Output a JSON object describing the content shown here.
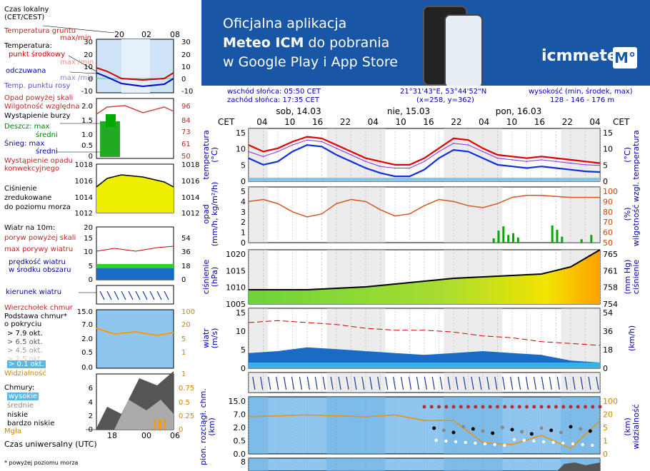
{
  "legend": {
    "time_local": "Czas lokalny\n(CET/CEST)",
    "soil_temp": "Temperatura gruntu",
    "soil_maxmin": "max/min",
    "temperature": "Temperatura:",
    "mid_point": "punkt środkowy",
    "max_min": "max /min",
    "feels_like": "odczuwana",
    "feels_maxmin": "max /min",
    "dew_point": "Temp. punktu rosy",
    "precip_above": "Opad powyżej skali",
    "humidity": "Wilgotność względna",
    "storm": "Wystąpienie burzy",
    "rain_max": "Deszcz: max",
    "rain_avg": "średni",
    "snow_max": "Śnieg:  max",
    "snow_avg": "średni",
    "conv_precip": "Wystąpienie opadu\nkonwekcyjnego",
    "pressure": "Ciśnienie\nzredukowane\ndo poziomu morza",
    "wind10": "Wiatr na 10m:",
    "gust_above": "poryw powyżej skali",
    "max_gust": "max porywy wiatru",
    "wind_speed": "prędkość wiatru\nw środku obszaru",
    "wind_dir": "kierunek wiatru",
    "cloud_top": "Wierzchołek chmur",
    "cloud_base": "Podstawa chmur*\no pokryciu",
    "cov1": "> 7.9 okt.",
    "cov2": "> 6.5 okt.",
    "cov3": "> 4.5 okt.",
    "cov4": "> 2.5 okt.",
    "cov5": "> 0.1 okt.",
    "visibility": "Widzialność",
    "clouds": "Chmury:",
    "high": "wysokie",
    "mid": "średnie",
    "low": "niskie",
    "very_low": "bardzo niskie",
    "fog": "Mgła",
    "utc": "Czas uniwersalny (UTC)",
    "footnote": "* powyżej poziomu morza",
    "hours_top": [
      "20",
      "02",
      "08"
    ],
    "hours_bottom": [
      "18",
      "00",
      "06"
    ]
  },
  "banner": {
    "line1": "Oficjalna aplikacja",
    "line2_pre": "Meteo ICM",
    "line2_post": " do pobrania",
    "line3": "w Google Play i App Store",
    "logo": "icmmeteo",
    "logo_box": "M°"
  },
  "info": {
    "sunrise": "wschód słońca: 05:50 CET",
    "sunset": "zachód słońca: 17:35 CET",
    "coords": "21°31'43\"E, 53°44'52\"N",
    "grid": "(x=258,  y=362)",
    "height_label": "wysokość (min, środek, max)",
    "height_values": "128 - 146 - 176 m"
  },
  "timeline": {
    "tz": "CET",
    "days": [
      "sob, 14.03",
      "nie, 15.03",
      "pon, 16.03"
    ],
    "hours": [
      "04",
      "10",
      "16",
      "22",
      "04",
      "10",
      "16",
      "22",
      "04",
      "10",
      "16",
      "22",
      "04"
    ]
  },
  "panels": {
    "temp": {
      "left": "temperatura\n(°C)",
      "ticks": [
        "15",
        "10",
        "5",
        "0"
      ]
    },
    "precip": {
      "left": "opad\n(mm/h, kg/m²/h)",
      "right": "(%)\nwilgotność wzgl.",
      "ticks": [
        "5",
        "4",
        "3",
        "2",
        "1",
        "0"
      ],
      "rticks": [
        "100",
        "90",
        "80",
        "70",
        "60",
        "50"
      ]
    },
    "pressure": {
      "left": "ciśnienie\n(hPa)",
      "right": "(mm Hg)\nciśnienie",
      "ticks": [
        "1020",
        "1015",
        "1010",
        "1005"
      ],
      "rticks": [
        "765",
        "761",
        "758",
        "754"
      ]
    },
    "wind": {
      "left": "wiatr\n(m/s)",
      "right": "(km/h)",
      "ticks": [
        "15",
        "10",
        "5",
        "0"
      ],
      "rticks": [
        "54",
        "36",
        "18",
        "0"
      ]
    },
    "clouds": {
      "left": "pion. rozciągł. chm.\n(km)",
      "right": "(km)\nwidzialność",
      "ticks": [
        "15.0",
        "7.0",
        "2.0",
        "0.5",
        "0.0"
      ],
      "rticks": [
        "100",
        "20",
        "5",
        "1",
        "0"
      ]
    },
    "bottom_tick": "8"
  },
  "chart_data": [
    {
      "type": "line",
      "title": "temperatura",
      "ylabel": "(°C)",
      "ylim": [
        -1,
        15
      ],
      "x": [
        0,
        3,
        6,
        9,
        12,
        15,
        18,
        21,
        24,
        27,
        30,
        33,
        36,
        39,
        42,
        45,
        48,
        51,
        54,
        57,
        60,
        63,
        66,
        69,
        72
      ],
      "series": [
        {
          "name": "max",
          "values": [
            10,
            8,
            9,
            11,
            12.5,
            12,
            10,
            8,
            6,
            5,
            4,
            4,
            6,
            9,
            12,
            11.5,
            9,
            7,
            6.5,
            6,
            6.5,
            6,
            5.5,
            5,
            4.5
          ]
        },
        {
          "name": "punkt środkowy",
          "values": [
            8,
            6.5,
            8,
            10,
            11.5,
            11,
            9,
            7,
            5,
            3.5,
            3,
            3,
            5,
            8,
            10.5,
            10,
            8,
            6,
            5.5,
            5,
            5.5,
            5,
            4.5,
            4,
            3.8
          ]
        },
        {
          "name": "odczuwana",
          "values": [
            6,
            4,
            5,
            8,
            10,
            9.5,
            7,
            5,
            3,
            1.5,
            0.5,
            0.5,
            2.5,
            6,
            8.5,
            8,
            6,
            4,
            3.5,
            3,
            3.5,
            3,
            2.5,
            2,
            1.8
          ]
        }
      ]
    },
    {
      "type": "line",
      "title": "ciśnienie",
      "ylabel": "(hPa)",
      "ylim": [
        1003,
        1022
      ],
      "x": [
        0,
        6,
        12,
        18,
        24,
        30,
        36,
        42,
        48,
        54,
        60,
        66,
        72
      ],
      "series": [
        {
          "name": "ciśnienie",
          "values": [
            1008,
            1008,
            1008,
            1008.5,
            1009,
            1010,
            1011,
            1012,
            1012.5,
            1013,
            1013.5,
            1016,
            1022
          ]
        }
      ]
    },
    {
      "type": "line",
      "title": "wiatr",
      "ylabel": "(m/s)",
      "ylim": [
        0,
        15
      ],
      "x": [
        0,
        6,
        12,
        18,
        24,
        30,
        36,
        42,
        48,
        54,
        60,
        66,
        72
      ],
      "series": [
        {
          "name": "prędkość wiatru",
          "values": [
            4,
            4.5,
            5.5,
            5,
            4.5,
            4,
            3.5,
            4,
            4.5,
            4,
            3.5,
            2,
            1.5
          ]
        },
        {
          "name": "max porywy wiatru",
          "values": [
            12,
            12.5,
            12,
            11.5,
            10.5,
            10,
            10,
            9.5,
            8.5,
            8,
            7,
            6.5,
            6
          ]
        }
      ]
    }
  ]
}
